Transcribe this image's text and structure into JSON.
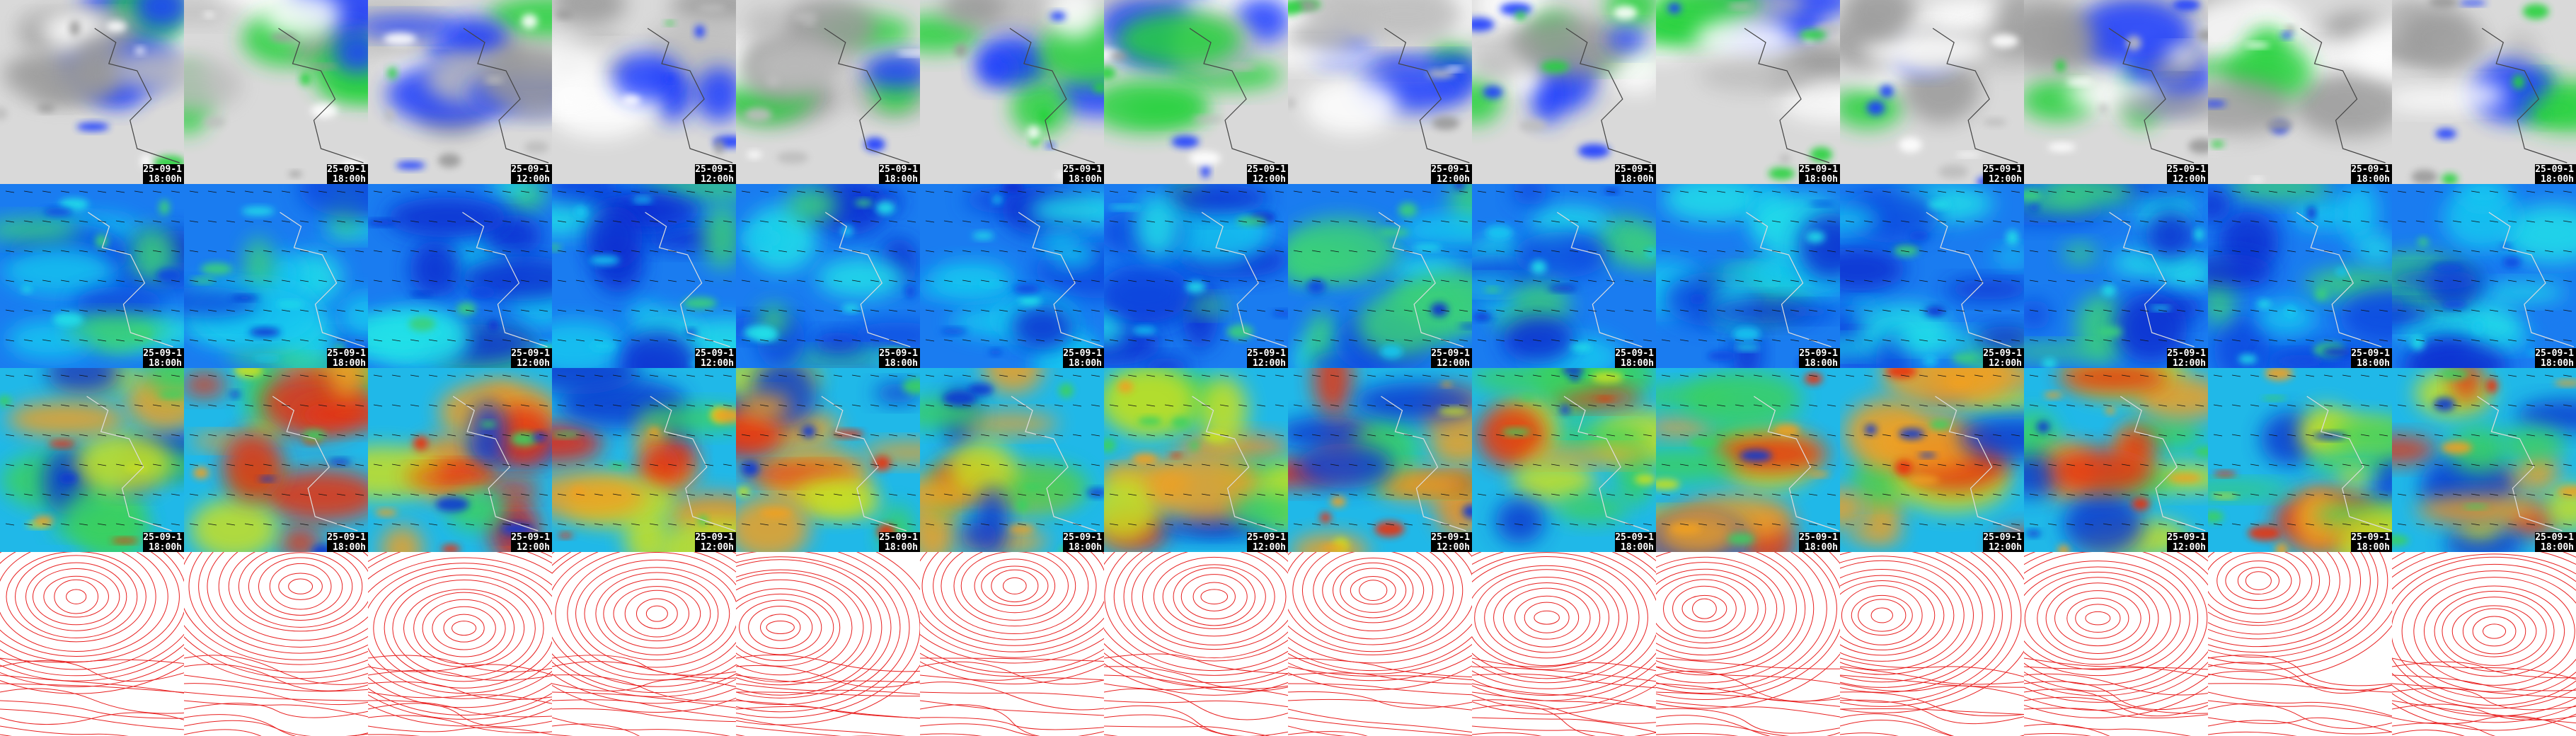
{
  "labeled_rows": [
    [
      {
        "date": "25-09-1",
        "time": "18:00h"
      },
      {
        "date": "25-09-1",
        "time": "18:00h"
      },
      {
        "date": "25-09-1",
        "time": "12:00h"
      },
      {
        "date": "25-09-1",
        "time": "12:00h"
      },
      {
        "date": "25-09-1",
        "time": "18:00h"
      },
      {
        "date": "25-09-1",
        "time": "18:00h"
      },
      {
        "date": "25-09-1",
        "time": "12:00h"
      },
      {
        "date": "25-09-1",
        "time": "12:00h"
      },
      {
        "date": "25-09-1",
        "time": "18:00h"
      },
      {
        "date": "25-09-1",
        "time": "18:00h"
      },
      {
        "date": "25-09-1",
        "time": "12:00h"
      },
      {
        "date": "25-09-1",
        "time": "12:00h"
      },
      {
        "date": "25-09-1",
        "time": "18:00h"
      },
      {
        "date": "25-09-1",
        "time": "18:00h"
      }
    ],
    [
      {
        "date": "25-09-1",
        "time": "18:00h"
      },
      {
        "date": "25-09-1",
        "time": "18:00h"
      },
      {
        "date": "25-09-1",
        "time": "12:00h"
      },
      {
        "date": "25-09-1",
        "time": "12:00h"
      },
      {
        "date": "25-09-1",
        "time": "18:00h"
      },
      {
        "date": "25-09-1",
        "time": "18:00h"
      },
      {
        "date": "25-09-1",
        "time": "12:00h"
      },
      {
        "date": "25-09-1",
        "time": "12:00h"
      },
      {
        "date": "25-09-1",
        "time": "18:00h"
      },
      {
        "date": "25-09-1",
        "time": "18:00h"
      },
      {
        "date": "25-09-1",
        "time": "12:00h"
      },
      {
        "date": "25-09-1",
        "time": "12:00h"
      },
      {
        "date": "25-09-1",
        "time": "18:00h"
      },
      {
        "date": "25-09-1",
        "time": "18:00h"
      }
    ],
    [
      {
        "date": "25-09-1",
        "time": "18:00h"
      },
      {
        "date": "25-09-1",
        "time": "18:00h"
      },
      {
        "date": "25-09-1",
        "time": "12:00h"
      },
      {
        "date": "25-09-1",
        "time": "12:00h"
      },
      {
        "date": "25-09-1",
        "time": "18:00h"
      },
      {
        "date": "25-09-1",
        "time": "18:00h"
      },
      {
        "date": "25-09-1",
        "time": "12:00h"
      },
      {
        "date": "25-09-1",
        "time": "12:00h"
      },
      {
        "date": "25-09-1",
        "time": "18:00h"
      },
      {
        "date": "25-09-1",
        "time": "18:00h"
      },
      {
        "date": "25-09-1",
        "time": "12:00h"
      },
      {
        "date": "25-09-1",
        "time": "12:00h"
      },
      {
        "date": "25-09-1",
        "time": "18:00h"
      },
      {
        "date": "25-09-1",
        "time": "18:00h"
      }
    ]
  ]
}
